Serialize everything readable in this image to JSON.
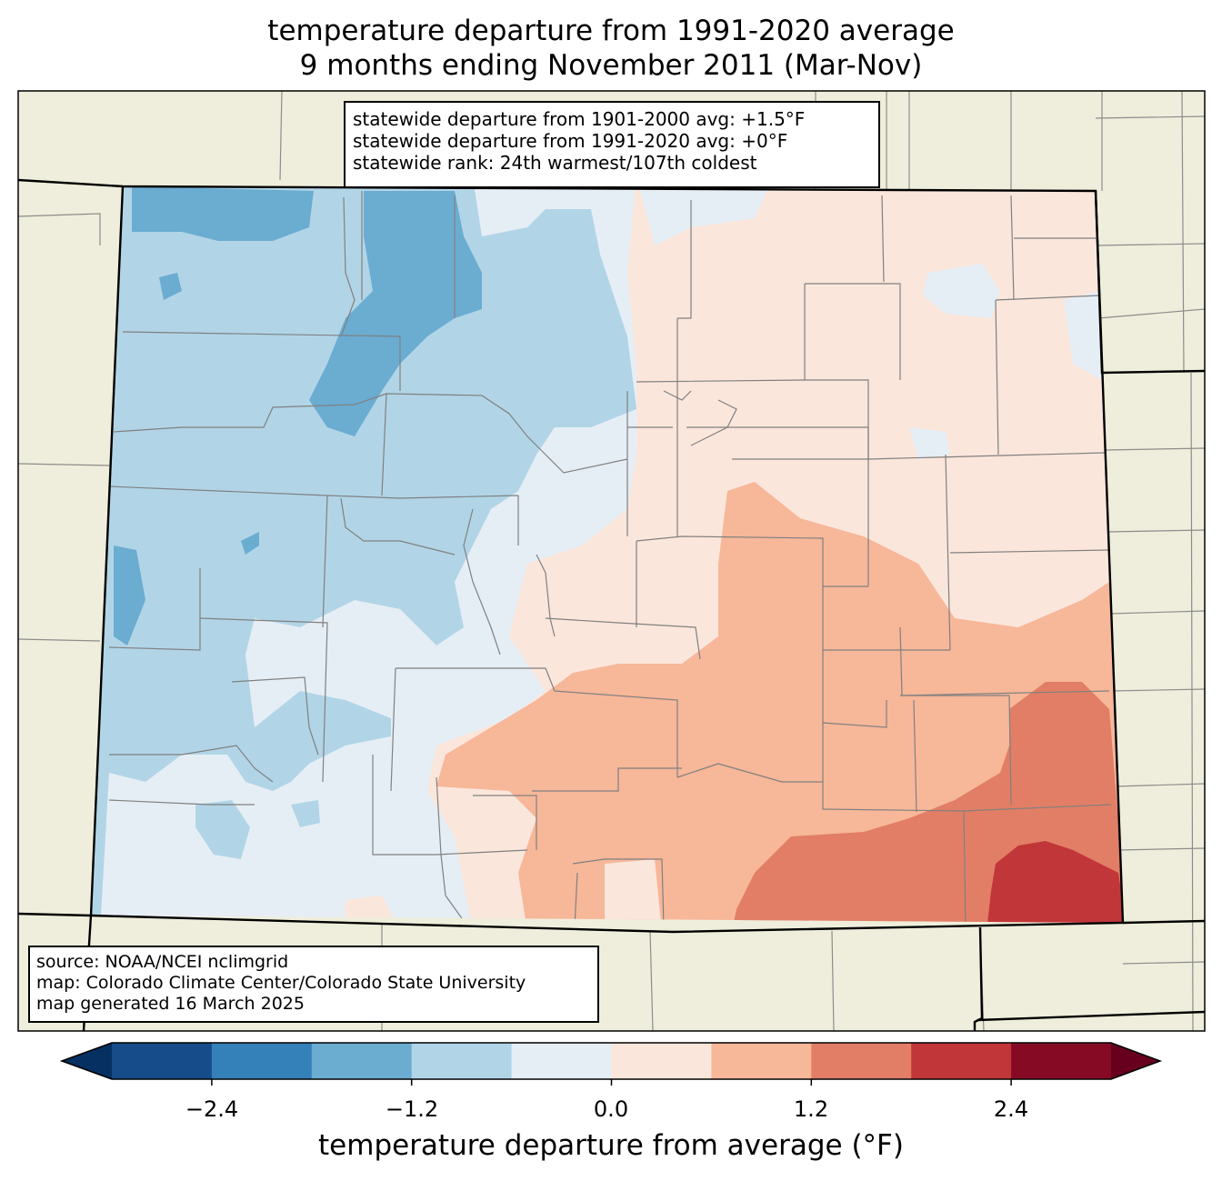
{
  "title": {
    "line1": "temperature departure from 1991-2020 average",
    "line2": "9 months ending November 2011 (Mar-Nov)"
  },
  "stats_box": {
    "line1": "statewide departure from 1901-2000 avg: +1.5°F",
    "line2": "statewide departure from 1991-2020 avg: +0°F",
    "line3": "statewide rank: 24th warmest/107th coldest"
  },
  "source_box": {
    "line1": "source: NOAA/NCEI nclimgrid",
    "line2": "map: Colorado Climate Center/Colorado State University",
    "line3": "map generated 16 March 2025"
  },
  "colorbar": {
    "label": "temperature departure from average (°F)",
    "ticks": [
      "−2.4",
      "−1.2",
      "0.0",
      "1.2",
      "2.4"
    ],
    "levels": [
      -3.0,
      -2.4,
      -1.8,
      -1.2,
      -0.6,
      0.0,
      0.6,
      1.2,
      1.8,
      2.4,
      3.0
    ],
    "colors": {
      "under": "#053061",
      "bins": [
        "#154c89",
        "#3480b9",
        "#6bacd1",
        "#b1d5e7",
        "#e6eef5",
        "#fbe6dc",
        "#f7b799",
        "#e27e66",
        "#c13639",
        "#870a24"
      ],
      "over": "#67001f"
    }
  },
  "map_colors": {
    "land": "#efeedc",
    "county_lines": "#808080",
    "state_lines": "#000000"
  }
}
